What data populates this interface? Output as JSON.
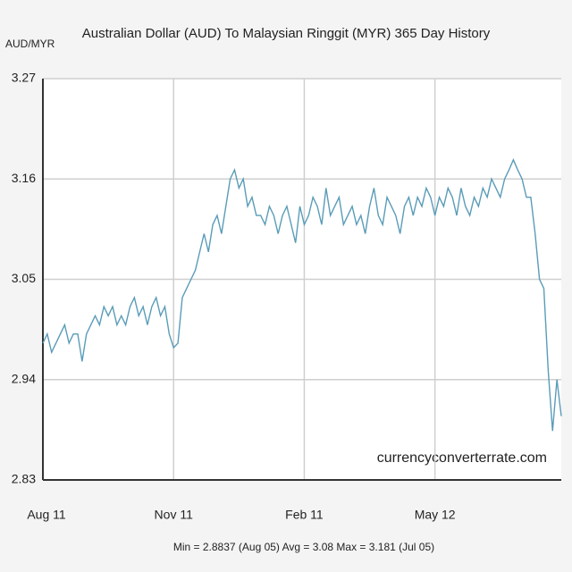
{
  "chart_data": {
    "type": "line",
    "title": "Australian Dollar (AUD) To Malaysian Ringgit (MYR) 365 Day History",
    "y_label": "AUD/MYR",
    "watermark": "currencyconverterrate.com",
    "footer": "Min = 2.8837 (Aug 05) Avg = 3.08 Max = 3.181 (Jul 05)",
    "categories": [
      "Aug 11",
      null,
      null,
      null,
      null,
      null,
      null,
      null,
      null,
      null,
      null,
      null,
      null,
      null,
      null,
      null,
      null,
      null,
      null,
      null,
      null,
      null,
      null,
      null,
      null,
      null,
      null,
      null,
      null,
      null,
      "Nov 11",
      null,
      null,
      null,
      null,
      null,
      null,
      null,
      null,
      null,
      null,
      null,
      null,
      null,
      null,
      null,
      null,
      null,
      null,
      null,
      null,
      null,
      null,
      null,
      null,
      null,
      null,
      null,
      null,
      null,
      "Feb 11",
      null,
      null,
      null,
      null,
      null,
      null,
      null,
      null,
      null,
      null,
      null,
      null,
      null,
      null,
      null,
      null,
      null,
      null,
      null,
      null,
      null,
      null,
      null,
      null,
      null,
      null,
      null,
      null,
      null,
      "May 12",
      null,
      null,
      null,
      null,
      null,
      null,
      null,
      null,
      null,
      null,
      null,
      null,
      null,
      null,
      null,
      null,
      null,
      null,
      null,
      null,
      null,
      null,
      null,
      null,
      null,
      null,
      null,
      null,
      null
    ],
    "series": [
      {
        "name": "AUD/MYR",
        "color": "#5a9cb8",
        "values": [
          2.98,
          2.99,
          2.97,
          2.98,
          2.99,
          3.0,
          2.98,
          2.99,
          2.99,
          2.96,
          2.99,
          3.0,
          3.01,
          3.0,
          3.02,
          3.01,
          3.02,
          3.0,
          3.01,
          3.0,
          3.02,
          3.03,
          3.01,
          3.02,
          3.0,
          3.02,
          3.03,
          3.01,
          3.02,
          2.99,
          2.975,
          2.98,
          3.03,
          3.04,
          3.05,
          3.06,
          3.08,
          3.1,
          3.08,
          3.11,
          3.12,
          3.1,
          3.13,
          3.16,
          3.17,
          3.15,
          3.16,
          3.13,
          3.14,
          3.12,
          3.12,
          3.11,
          3.13,
          3.12,
          3.1,
          3.12,
          3.13,
          3.11,
          3.09,
          3.13,
          3.11,
          3.12,
          3.14,
          3.13,
          3.11,
          3.15,
          3.12,
          3.13,
          3.14,
          3.11,
          3.12,
          3.13,
          3.11,
          3.12,
          3.1,
          3.13,
          3.15,
          3.12,
          3.11,
          3.14,
          3.13,
          3.12,
          3.1,
          3.13,
          3.14,
          3.12,
          3.14,
          3.13,
          3.15,
          3.14,
          3.12,
          3.14,
          3.13,
          3.15,
          3.14,
          3.12,
          3.15,
          3.13,
          3.12,
          3.14,
          3.13,
          3.15,
          3.14,
          3.16,
          3.15,
          3.14,
          3.16,
          3.17,
          3.181,
          3.17,
          3.16,
          3.14,
          3.14,
          3.1,
          3.05,
          3.04,
          2.95,
          2.8837,
          2.94,
          2.9
        ]
      }
    ],
    "ylim": [
      2.83,
      3.27
    ],
    "yticks": [
      2.83,
      2.94,
      3.05,
      3.16,
      3.27
    ],
    "grid": true
  }
}
